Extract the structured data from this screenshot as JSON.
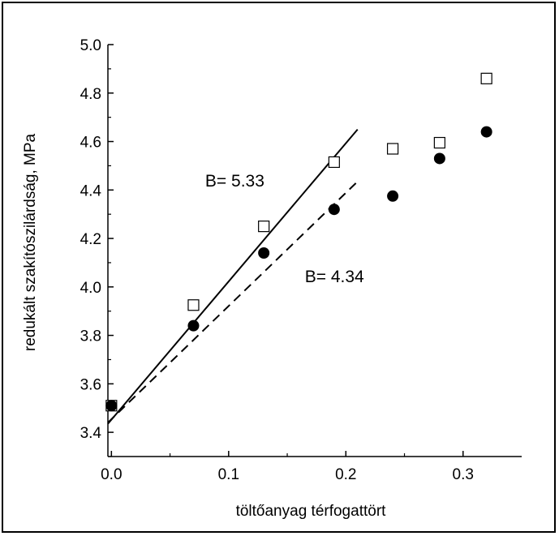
{
  "chart_data": {
    "type": "scatter",
    "xlabel": "töltőanyag térfogattört",
    "ylabel": "redukált szakítószilárdság, MPa",
    "xlim": [
      -0.003,
      0.35
    ],
    "ylim": [
      3.3,
      5.0
    ],
    "x_ticks": [
      0.0,
      0.1,
      0.2,
      0.3
    ],
    "x_tick_labels": [
      "0.0",
      "0.1",
      "0.2",
      "0.3"
    ],
    "y_ticks": [
      3.4,
      3.6,
      3.8,
      4.0,
      4.2,
      4.4,
      4.6,
      4.8,
      5.0
    ],
    "y_tick_labels": [
      "3.4",
      "3.6",
      "3.8",
      "4.0",
      "4.2",
      "4.4",
      "4.6",
      "4.8",
      "5.0"
    ],
    "grid": false,
    "series": [
      {
        "marker": "open-square",
        "color": "#000000",
        "points": [
          [
            0.0,
            3.51
          ],
          [
            0.07,
            3.925
          ],
          [
            0.13,
            4.25
          ],
          [
            0.19,
            4.515
          ],
          [
            0.24,
            4.57
          ],
          [
            0.28,
            4.595
          ],
          [
            0.32,
            4.86
          ]
        ]
      },
      {
        "marker": "filled-circle",
        "color": "#000000",
        "points": [
          [
            0.0,
            3.51
          ],
          [
            0.07,
            3.84
          ],
          [
            0.13,
            4.14
          ],
          [
            0.19,
            4.32
          ],
          [
            0.24,
            4.375
          ],
          [
            0.28,
            4.53
          ],
          [
            0.32,
            4.64
          ]
        ]
      }
    ],
    "fit_lines": [
      {
        "style": "solid",
        "from": [
          -0.003,
          3.435
        ],
        "to": [
          0.21,
          4.65
        ]
      },
      {
        "style": "dashed",
        "from": [
          -0.003,
          3.44
        ],
        "to": [
          0.21,
          4.435
        ]
      }
    ],
    "annotations": [
      {
        "text": "B= 5.33",
        "x": 0.08,
        "y": 4.415
      },
      {
        "text": "B= 4.34",
        "x": 0.165,
        "y": 4.02
      }
    ]
  }
}
